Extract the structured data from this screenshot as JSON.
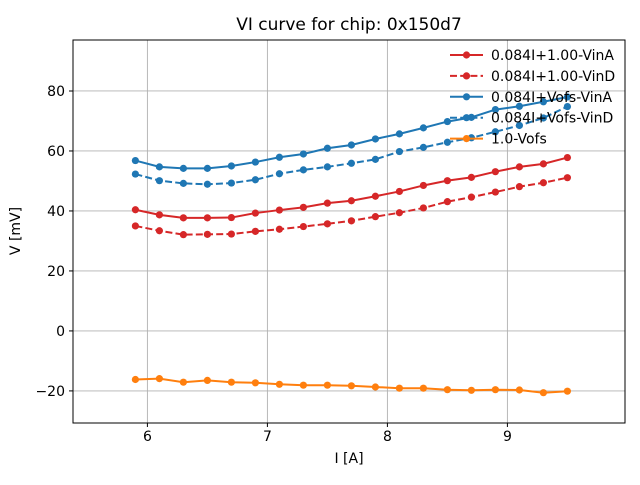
{
  "figure": {
    "background": "#ffffff",
    "grid_color": "#b0b0b0",
    "spine_color": "#000000"
  },
  "chart_data": {
    "type": "line",
    "title": "VI curve for chip: 0x150d7",
    "xlabel": "I [A]",
    "ylabel": "V [mV]",
    "xlim": [
      5.38,
      9.98
    ],
    "ylim": [
      -30.7,
      97.0
    ],
    "xticks": [
      6,
      7,
      8,
      9
    ],
    "yticks": [
      -20,
      0,
      20,
      40,
      60,
      80
    ],
    "xtick_labels": [
      "6",
      "7",
      "8",
      "9"
    ],
    "ytick_labels": [
      "−20",
      "0",
      "20",
      "40",
      "60",
      "80"
    ],
    "grid": true,
    "legend_position": "upper right",
    "x": [
      5.9,
      6.1,
      6.3,
      6.5,
      6.7,
      6.9,
      7.1,
      7.3,
      7.5,
      7.7,
      7.9,
      8.1,
      8.3,
      8.5,
      8.7,
      8.9,
      9.1,
      9.3,
      9.5
    ],
    "series": [
      {
        "name": "0.084I+1.00-VinA",
        "color": "#d62728",
        "style": "solid",
        "values": [
          40.4,
          38.7,
          37.7,
          37.7,
          37.8,
          39.3,
          40.3,
          41.2,
          42.6,
          43.4,
          44.9,
          46.5,
          48.5,
          50.1,
          51.2,
          53.1,
          54.7,
          55.7,
          57.8
        ]
      },
      {
        "name": "0.084I+1.00-VinD",
        "color": "#d62728",
        "style": "dashed",
        "values": [
          35.0,
          33.4,
          32.1,
          32.2,
          32.3,
          33.2,
          33.9,
          34.8,
          35.7,
          36.7,
          38.1,
          39.4,
          41.0,
          43.1,
          44.6,
          46.3,
          48.1,
          49.4,
          51.1
        ]
      },
      {
        "name": "0.084I+Vofs-VinA",
        "color": "#1f77b4",
        "style": "solid",
        "values": [
          56.8,
          54.7,
          54.2,
          54.2,
          55.0,
          56.3,
          57.9,
          59.0,
          60.9,
          62.0,
          64.0,
          65.7,
          67.7,
          69.8,
          71.2,
          73.8,
          74.9,
          76.4,
          78.0
        ]
      },
      {
        "name": "0.084I+Vofs-VinD",
        "color": "#1f77b4",
        "style": "dashed",
        "values": [
          52.3,
          50.1,
          49.2,
          48.9,
          49.3,
          50.4,
          52.4,
          53.7,
          54.7,
          55.9,
          57.2,
          59.8,
          61.2,
          62.9,
          64.4,
          66.4,
          68.5,
          71.0,
          74.8
        ]
      },
      {
        "name": "1.0-Vofs",
        "color": "#ff7f0e",
        "style": "solid",
        "values": [
          -16.2,
          -15.9,
          -17.1,
          -16.5,
          -17.1,
          -17.3,
          -17.8,
          -18.1,
          -18.1,
          -18.3,
          -18.7,
          -19.1,
          -19.1,
          -19.6,
          -19.8,
          -19.6,
          -19.7,
          -20.6,
          -20.1
        ]
      }
    ]
  }
}
